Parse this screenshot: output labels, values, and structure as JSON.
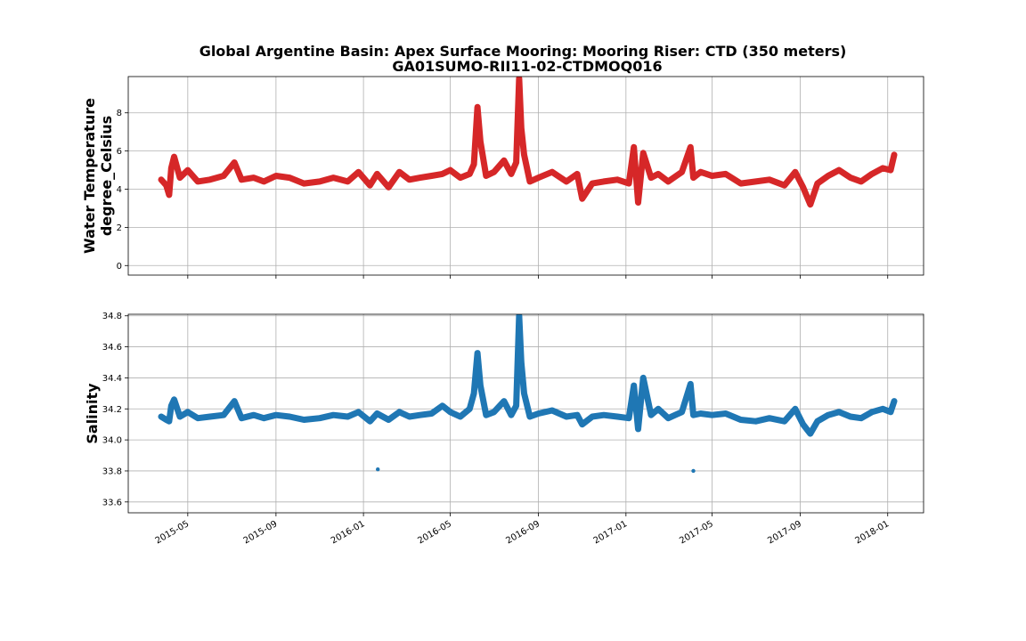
{
  "title_line1": "Global Argentine Basin: Apex Surface Mooring: Mooring Riser: CTD (350 meters)",
  "title_line2": "GA01SUMO-RII11-02-CTDMOQ016",
  "chart_data": [
    {
      "type": "scatter",
      "series": [
        {
          "name": "",
          "color": "#d62728",
          "x": [
            "2015-03-25",
            "2015-04-01",
            "2015-04-05",
            "2015-04-08",
            "2015-04-12",
            "2015-04-20",
            "2015-05-01",
            "2015-05-15",
            "2015-06-01",
            "2015-06-20",
            "2015-07-05",
            "2015-07-15",
            "2015-08-01",
            "2015-08-15",
            "2015-09-01",
            "2015-09-20",
            "2015-10-10",
            "2015-11-01",
            "2015-11-20",
            "2015-12-10",
            "2015-12-25",
            "2016-01-10",
            "2016-01-20",
            "2016-02-05",
            "2016-02-20",
            "2016-03-05",
            "2016-03-20",
            "2016-04-05",
            "2016-04-20",
            "2016-05-01",
            "2016-05-15",
            "2016-05-28",
            "2016-06-03",
            "2016-06-08",
            "2016-06-12",
            "2016-06-20",
            "2016-07-01",
            "2016-07-15",
            "2016-07-25",
            "2016-08-01",
            "2016-08-05",
            "2016-08-08",
            "2016-08-12",
            "2016-08-20",
            "2016-09-01",
            "2016-09-20",
            "2016-10-10",
            "2016-10-25",
            "2016-11-01",
            "2016-11-15",
            "2016-12-01",
            "2016-12-20",
            "2017-01-05",
            "2017-01-12",
            "2017-01-18",
            "2017-01-25",
            "2017-02-05",
            "2017-02-15",
            "2017-03-01",
            "2017-03-20",
            "2017-04-01",
            "2017-04-05",
            "2017-04-15",
            "2017-05-01",
            "2017-05-20",
            "2017-06-10",
            "2017-07-01",
            "2017-07-20",
            "2017-08-10",
            "2017-08-25",
            "2017-09-05",
            "2017-09-15",
            "2017-09-25",
            "2017-10-10",
            "2017-10-25",
            "2017-11-10",
            "2017-11-25",
            "2017-12-10",
            "2017-12-25",
            "2018-01-05",
            "2018-01-10"
          ],
          "y": [
            4.5,
            4.2,
            3.7,
            5.1,
            5.7,
            4.6,
            5.0,
            4.4,
            4.5,
            4.7,
            5.4,
            4.5,
            4.6,
            4.4,
            4.7,
            4.6,
            4.3,
            4.4,
            4.6,
            4.4,
            4.9,
            4.2,
            4.8,
            4.1,
            4.9,
            4.5,
            4.6,
            4.7,
            4.8,
            5.0,
            4.6,
            4.8,
            5.3,
            8.3,
            6.5,
            4.7,
            4.9,
            5.5,
            4.8,
            5.4,
            9.8,
            7.2,
            5.8,
            4.4,
            4.6,
            4.9,
            4.4,
            4.8,
            3.5,
            4.3,
            4.4,
            4.5,
            4.3,
            6.2,
            3.3,
            5.9,
            4.6,
            4.8,
            4.4,
            4.9,
            6.2,
            4.6,
            4.9,
            4.7,
            4.8,
            4.3,
            4.4,
            4.5,
            4.2,
            4.9,
            4.1,
            3.2,
            4.3,
            4.7,
            5.0,
            4.6,
            4.4,
            4.8,
            5.1,
            5.0,
            5.8
          ],
          "outliers": []
        }
      ],
      "title": "",
      "xlabel": "",
      "ylabel": "Water Temperature\ndegree_Celsius",
      "ylim": [
        -0.5,
        9.9
      ],
      "xlim": [
        "2015-02-07",
        "2018-02-20"
      ],
      "yticks": [
        "0",
        "2",
        "4",
        "6",
        "8"
      ],
      "grid": true,
      "legend": "none"
    },
    {
      "type": "scatter",
      "series": [
        {
          "name": "",
          "color": "#1f77b4",
          "x": [
            "2015-03-25",
            "2015-04-01",
            "2015-04-05",
            "2015-04-08",
            "2015-04-12",
            "2015-04-20",
            "2015-05-01",
            "2015-05-15",
            "2015-06-01",
            "2015-06-20",
            "2015-07-05",
            "2015-07-15",
            "2015-08-01",
            "2015-08-15",
            "2015-09-01",
            "2015-09-20",
            "2015-10-10",
            "2015-11-01",
            "2015-11-20",
            "2015-12-10",
            "2015-12-25",
            "2016-01-10",
            "2016-01-20",
            "2016-02-05",
            "2016-02-20",
            "2016-03-05",
            "2016-03-20",
            "2016-04-05",
            "2016-04-20",
            "2016-05-01",
            "2016-05-15",
            "2016-05-28",
            "2016-06-03",
            "2016-06-08",
            "2016-06-12",
            "2016-06-20",
            "2016-07-01",
            "2016-07-15",
            "2016-07-25",
            "2016-08-01",
            "2016-08-05",
            "2016-08-08",
            "2016-08-12",
            "2016-08-20",
            "2016-09-01",
            "2016-09-20",
            "2016-10-10",
            "2016-10-25",
            "2016-11-01",
            "2016-11-15",
            "2016-12-01",
            "2016-12-20",
            "2017-01-05",
            "2017-01-12",
            "2017-01-18",
            "2017-01-25",
            "2017-02-05",
            "2017-02-15",
            "2017-03-01",
            "2017-03-20",
            "2017-04-01",
            "2017-04-05",
            "2017-04-15",
            "2017-05-01",
            "2017-05-20",
            "2017-06-10",
            "2017-07-01",
            "2017-07-20",
            "2017-08-10",
            "2017-08-25",
            "2017-09-05",
            "2017-09-15",
            "2017-09-25",
            "2017-10-10",
            "2017-10-25",
            "2017-11-10",
            "2017-11-25",
            "2017-12-10",
            "2017-12-25",
            "2018-01-05",
            "2018-01-10"
          ],
          "y": [
            34.15,
            34.13,
            34.12,
            34.22,
            34.26,
            34.15,
            34.18,
            34.14,
            34.15,
            34.16,
            34.25,
            34.14,
            34.16,
            34.14,
            34.16,
            34.15,
            34.13,
            34.14,
            34.16,
            34.15,
            34.18,
            34.12,
            34.17,
            34.13,
            34.18,
            34.15,
            34.16,
            34.17,
            34.22,
            34.18,
            34.15,
            34.2,
            34.3,
            34.56,
            34.35,
            34.16,
            34.18,
            34.25,
            34.16,
            34.22,
            34.8,
            34.5,
            34.3,
            34.15,
            34.17,
            34.19,
            34.15,
            34.16,
            34.1,
            34.15,
            34.16,
            34.15,
            34.14,
            34.35,
            34.07,
            34.4,
            34.16,
            34.2,
            34.14,
            34.18,
            34.36,
            34.16,
            34.17,
            34.16,
            34.17,
            34.13,
            34.12,
            34.14,
            34.12,
            34.2,
            34.1,
            34.04,
            34.12,
            34.16,
            34.18,
            34.15,
            34.14,
            34.18,
            34.2,
            34.18,
            34.25
          ],
          "outliers": [
            [
              "2016-01-21",
              33.81
            ],
            [
              "2017-04-05",
              33.8
            ]
          ]
        }
      ],
      "title": "",
      "xlabel": "",
      "ylabel": "Salinity",
      "ylim": [
        33.53,
        34.81
      ],
      "xlim": [
        "2015-02-07",
        "2018-02-20"
      ],
      "yticks": [
        "33.6",
        "33.8",
        "34.0",
        "34.2",
        "34.4",
        "34.6",
        "34.8"
      ],
      "grid": true,
      "legend": "none"
    }
  ],
  "xtick_labels": [
    "2015-05",
    "2015-09",
    "2016-01",
    "2016-05",
    "2016-09",
    "2017-01",
    "2017-05",
    "2017-09",
    "2018-01"
  ]
}
